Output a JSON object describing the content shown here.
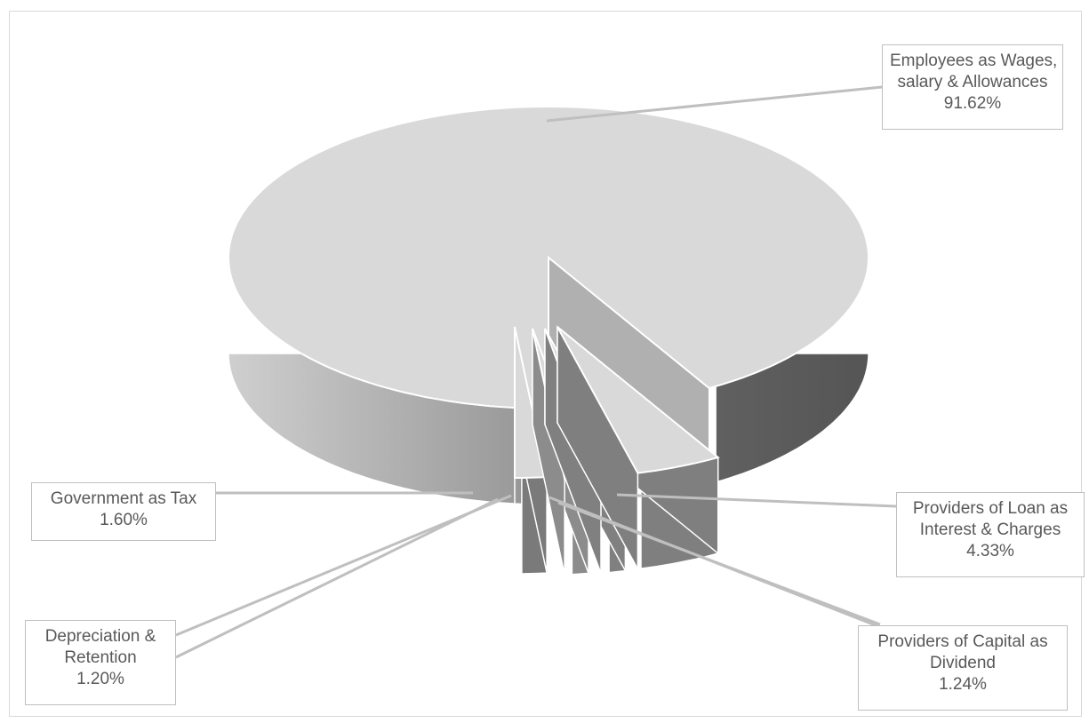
{
  "chart_data": {
    "type": "pie",
    "title": "",
    "legend": "none",
    "slices": [
      {
        "name_lines": [
          "Employees as Wages,",
          "salary & Allowances"
        ],
        "label": "91.62%",
        "value": 91.62,
        "color": "#d9d9d9"
      },
      {
        "name_lines": [
          "Providers of Loan as",
          "Interest & Charges"
        ],
        "label": "4.33%",
        "value": 4.33,
        "color": "#d9d9d9"
      },
      {
        "name_lines": [
          "Providers of Capital as",
          "Dividend"
        ],
        "label": "1.24%",
        "value": 1.24,
        "color": "#d9d9d9"
      },
      {
        "name_lines": [
          "Depreciation &",
          "Retention"
        ],
        "label": "1.20%",
        "value": 1.2,
        "color": "#d9d9d9"
      },
      {
        "name_lines": [
          "Government as Tax"
        ],
        "label": "1.60%",
        "value": 1.6,
        "color": "#d9d9d9"
      }
    ]
  }
}
